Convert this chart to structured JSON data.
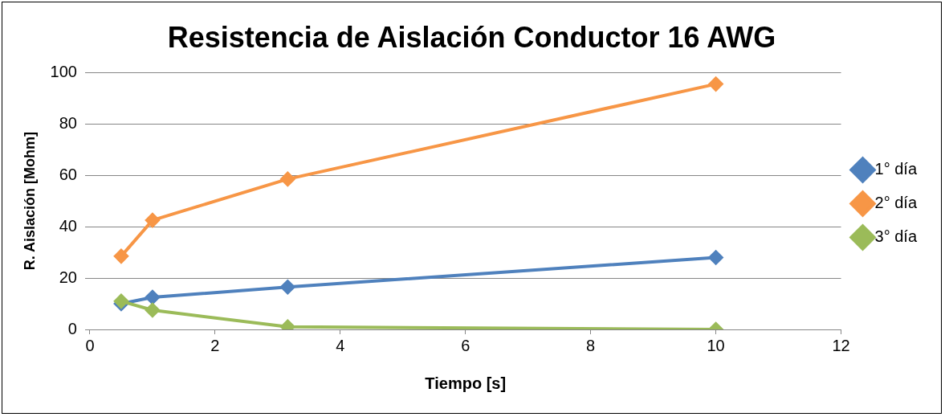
{
  "chart_data": {
    "type": "line",
    "title": "Resistencia de Aislación Conductor 16 AWG",
    "xlabel": "Tiempo [s]",
    "ylabel": "R. Aislación [Mohm]",
    "x": [
      0.5,
      1,
      3.16,
      10
    ],
    "series": [
      {
        "name": "1° día",
        "color": "#4f81bd",
        "values": [
          10,
          12.5,
          16.5,
          28
        ]
      },
      {
        "name": "2° día",
        "color": "#f79646",
        "values": [
          28.5,
          42.5,
          58.5,
          95.5
        ]
      },
      {
        "name": "3° día",
        "color": "#9bbb59",
        "values": [
          11,
          7.5,
          1,
          0
        ]
      }
    ],
    "xlim": [
      0,
      12
    ],
    "xticks": [
      0,
      2,
      4,
      6,
      8,
      10,
      12
    ],
    "ylim": [
      0,
      100
    ],
    "yticks": [
      0,
      20,
      40,
      60,
      80,
      100
    ],
    "grid": "y",
    "legend": "right",
    "marker": "diamond",
    "line_style": "solid"
  }
}
